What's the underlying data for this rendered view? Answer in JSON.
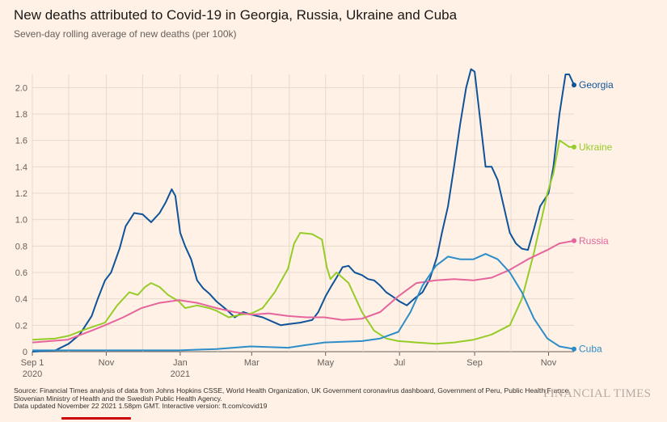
{
  "header": {
    "title": "New deaths attributed to Covid-19 in Georgia, Russia, Ukraine and Cuba",
    "subtitle": "Seven-day rolling average of new deaths (per 100k)"
  },
  "footer": {
    "source": "Source: Financial Times analysis of data from Johns Hopkins CSSE, World Health Organization, UK Government coronavirus dashboard, Government of Peru, Public Health France, Slovenian Ministry of Health and the Swedish Public Health Agency.",
    "updated": "Data updated November 22 2021 1.58pm GMT. Interactive version: ft.com/covid19",
    "brand": "FINANCIAL TIMES"
  },
  "chart_data": {
    "type": "line",
    "title": "New deaths attributed to Covid-19 in Georgia, Russia, Ukraine and Cuba",
    "subtitle": "Seven-day rolling average of new deaths (per 100k)",
    "ylim": [
      0,
      2.1
    ],
    "yticks": [
      "0",
      "0.2",
      "0.4",
      "0.6",
      "0.8",
      "1.0",
      "1.2",
      "1.4",
      "1.6",
      "1.8",
      "2.0"
    ],
    "xlim": [
      "2020-09-01",
      "2021-11-22"
    ],
    "xticks": [
      {
        "date": "2020-09-01",
        "label": "Sep 1",
        "sub": "2020"
      },
      {
        "date": "2020-11-01",
        "label": "Nov",
        "sub": ""
      },
      {
        "date": "2021-01-01",
        "label": "Jan",
        "sub": "2021"
      },
      {
        "date": "2021-03-01",
        "label": "Mar",
        "sub": ""
      },
      {
        "date": "2021-05-01",
        "label": "May",
        "sub": ""
      },
      {
        "date": "2021-07-01",
        "label": "Jul",
        "sub": ""
      },
      {
        "date": "2021-09-01",
        "label": "Sep",
        "sub": ""
      },
      {
        "date": "2021-11-01",
        "label": "Nov",
        "sub": ""
      }
    ],
    "grid": true,
    "series": [
      {
        "name": "Georgia",
        "color": "#0f5499",
        "points": [
          [
            "2020-09-01",
            0.0
          ],
          [
            "2020-09-20",
            0.01
          ],
          [
            "2020-10-01",
            0.06
          ],
          [
            "2020-10-10",
            0.13
          ],
          [
            "2020-10-20",
            0.27
          ],
          [
            "2020-10-25",
            0.4
          ],
          [
            "2020-10-31",
            0.54
          ],
          [
            "2020-11-05",
            0.6
          ],
          [
            "2020-11-12",
            0.78
          ],
          [
            "2020-11-17",
            0.95
          ],
          [
            "2020-11-24",
            1.05
          ],
          [
            "2020-12-01",
            1.04
          ],
          [
            "2020-12-08",
            0.98
          ],
          [
            "2020-12-15",
            1.05
          ],
          [
            "2020-12-20",
            1.13
          ],
          [
            "2020-12-25",
            1.23
          ],
          [
            "2020-12-28",
            1.18
          ],
          [
            "2021-01-01",
            0.9
          ],
          [
            "2021-01-05",
            0.8
          ],
          [
            "2021-01-10",
            0.7
          ],
          [
            "2021-01-15",
            0.54
          ],
          [
            "2021-01-20",
            0.48
          ],
          [
            "2021-01-25",
            0.44
          ],
          [
            "2021-01-31",
            0.38
          ],
          [
            "2021-02-08",
            0.32
          ],
          [
            "2021-02-15",
            0.26
          ],
          [
            "2021-02-22",
            0.3
          ],
          [
            "2021-03-01",
            0.28
          ],
          [
            "2021-03-10",
            0.26
          ],
          [
            "2021-03-20",
            0.22
          ],
          [
            "2021-03-25",
            0.2
          ],
          [
            "2021-04-01",
            0.21
          ],
          [
            "2021-04-10",
            0.22
          ],
          [
            "2021-04-20",
            0.24
          ],
          [
            "2021-04-25",
            0.3
          ],
          [
            "2021-05-01",
            0.42
          ],
          [
            "2021-05-06",
            0.5
          ],
          [
            "2021-05-10",
            0.56
          ],
          [
            "2021-05-15",
            0.64
          ],
          [
            "2021-05-20",
            0.65
          ],
          [
            "2021-05-25",
            0.6
          ],
          [
            "2021-05-31",
            0.58
          ],
          [
            "2021-06-05",
            0.55
          ],
          [
            "2021-06-10",
            0.54
          ],
          [
            "2021-06-15",
            0.5
          ],
          [
            "2021-06-20",
            0.45
          ],
          [
            "2021-06-25",
            0.42
          ],
          [
            "2021-07-01",
            0.38
          ],
          [
            "2021-07-07",
            0.35
          ],
          [
            "2021-07-13",
            0.4
          ],
          [
            "2021-07-20",
            0.45
          ],
          [
            "2021-07-26",
            0.55
          ],
          [
            "2021-08-01",
            0.72
          ],
          [
            "2021-08-05",
            0.9
          ],
          [
            "2021-08-10",
            1.1
          ],
          [
            "2021-08-15",
            1.4
          ],
          [
            "2021-08-20",
            1.72
          ],
          [
            "2021-08-25",
            2.0
          ],
          [
            "2021-08-29",
            2.14
          ],
          [
            "2021-09-01",
            2.12
          ],
          [
            "2021-09-05",
            1.8
          ],
          [
            "2021-09-10",
            1.4
          ],
          [
            "2021-09-15",
            1.4
          ],
          [
            "2021-09-20",
            1.3
          ],
          [
            "2021-09-25",
            1.1
          ],
          [
            "2021-09-30",
            0.9
          ],
          [
            "2021-10-05",
            0.82
          ],
          [
            "2021-10-10",
            0.78
          ],
          [
            "2021-10-15",
            0.77
          ],
          [
            "2021-10-20",
            0.93
          ],
          [
            "2021-10-25",
            1.1
          ],
          [
            "2021-11-01",
            1.2
          ],
          [
            "2021-11-05",
            1.4
          ],
          [
            "2021-11-10",
            1.8
          ],
          [
            "2021-11-15",
            2.1
          ],
          [
            "2021-11-18",
            2.1
          ],
          [
            "2021-11-22",
            2.02
          ]
        ]
      },
      {
        "name": "Ukraine",
        "color": "#96cc28",
        "points": [
          [
            "2020-09-01",
            0.09
          ],
          [
            "2020-09-20",
            0.1
          ],
          [
            "2020-10-01",
            0.12
          ],
          [
            "2020-10-15",
            0.17
          ],
          [
            "2020-10-31",
            0.22
          ],
          [
            "2020-11-10",
            0.35
          ],
          [
            "2020-11-20",
            0.45
          ],
          [
            "2020-11-27",
            0.43
          ],
          [
            "2020-12-03",
            0.49
          ],
          [
            "2020-12-08",
            0.52
          ],
          [
            "2020-12-15",
            0.49
          ],
          [
            "2020-12-22",
            0.43
          ],
          [
            "2020-12-31",
            0.38
          ],
          [
            "2021-01-05",
            0.33
          ],
          [
            "2021-01-15",
            0.35
          ],
          [
            "2021-01-25",
            0.33
          ],
          [
            "2021-01-31",
            0.31
          ],
          [
            "2021-02-10",
            0.26
          ],
          [
            "2021-02-20",
            0.28
          ],
          [
            "2021-03-01",
            0.29
          ],
          [
            "2021-03-10",
            0.33
          ],
          [
            "2021-03-20",
            0.45
          ],
          [
            "2021-03-31",
            0.63
          ],
          [
            "2021-04-05",
            0.82
          ],
          [
            "2021-04-10",
            0.9
          ],
          [
            "2021-04-20",
            0.89
          ],
          [
            "2021-04-28",
            0.85
          ],
          [
            "2021-05-02",
            0.64
          ],
          [
            "2021-05-05",
            0.55
          ],
          [
            "2021-05-10",
            0.6
          ],
          [
            "2021-05-15",
            0.56
          ],
          [
            "2021-05-20",
            0.52
          ],
          [
            "2021-05-25",
            0.42
          ],
          [
            "2021-05-31",
            0.3
          ],
          [
            "2021-06-10",
            0.16
          ],
          [
            "2021-06-20",
            0.1
          ],
          [
            "2021-06-30",
            0.08
          ],
          [
            "2021-07-15",
            0.07
          ],
          [
            "2021-07-31",
            0.06
          ],
          [
            "2021-08-15",
            0.07
          ],
          [
            "2021-08-31",
            0.09
          ],
          [
            "2021-09-15",
            0.13
          ],
          [
            "2021-09-30",
            0.2
          ],
          [
            "2021-10-10",
            0.4
          ],
          [
            "2021-10-20",
            0.75
          ],
          [
            "2021-10-31",
            1.2
          ],
          [
            "2021-11-05",
            1.35
          ],
          [
            "2021-11-10",
            1.6
          ],
          [
            "2021-11-15",
            1.57
          ],
          [
            "2021-11-18",
            1.55
          ],
          [
            "2021-11-22",
            1.55
          ]
        ]
      },
      {
        "name": "Russia",
        "color": "#e5659c",
        "points": [
          [
            "2020-09-01",
            0.07
          ],
          [
            "2020-09-30",
            0.09
          ],
          [
            "2020-10-20",
            0.16
          ],
          [
            "2020-10-31",
            0.2
          ],
          [
            "2020-11-15",
            0.26
          ],
          [
            "2020-11-30",
            0.33
          ],
          [
            "2020-12-15",
            0.37
          ],
          [
            "2020-12-31",
            0.39
          ],
          [
            "2021-01-15",
            0.37
          ],
          [
            "2021-01-31",
            0.33
          ],
          [
            "2021-02-15",
            0.3
          ],
          [
            "2021-03-01",
            0.28
          ],
          [
            "2021-03-15",
            0.29
          ],
          [
            "2021-03-31",
            0.27
          ],
          [
            "2021-04-15",
            0.26
          ],
          [
            "2021-04-30",
            0.26
          ],
          [
            "2021-05-15",
            0.24
          ],
          [
            "2021-05-31",
            0.25
          ],
          [
            "2021-06-15",
            0.3
          ],
          [
            "2021-06-30",
            0.42
          ],
          [
            "2021-07-15",
            0.52
          ],
          [
            "2021-07-31",
            0.54
          ],
          [
            "2021-08-15",
            0.55
          ],
          [
            "2021-08-31",
            0.54
          ],
          [
            "2021-09-15",
            0.56
          ],
          [
            "2021-09-30",
            0.62
          ],
          [
            "2021-10-15",
            0.7
          ],
          [
            "2021-10-31",
            0.77
          ],
          [
            "2021-11-10",
            0.82
          ],
          [
            "2021-11-22",
            0.84
          ]
        ]
      },
      {
        "name": "Cuba",
        "color": "#2d8dc8",
        "points": [
          [
            "2020-09-01",
            0.01
          ],
          [
            "2020-12-31",
            0.01
          ],
          [
            "2021-01-31",
            0.02
          ],
          [
            "2021-02-28",
            0.04
          ],
          [
            "2021-03-31",
            0.03
          ],
          [
            "2021-04-15",
            0.05
          ],
          [
            "2021-04-30",
            0.07
          ],
          [
            "2021-05-31",
            0.08
          ],
          [
            "2021-06-15",
            0.1
          ],
          [
            "2021-06-30",
            0.15
          ],
          [
            "2021-07-10",
            0.3
          ],
          [
            "2021-07-20",
            0.5
          ],
          [
            "2021-07-31",
            0.65
          ],
          [
            "2021-08-10",
            0.72
          ],
          [
            "2021-08-20",
            0.7
          ],
          [
            "2021-08-31",
            0.7
          ],
          [
            "2021-09-10",
            0.74
          ],
          [
            "2021-09-20",
            0.7
          ],
          [
            "2021-09-30",
            0.6
          ],
          [
            "2021-10-10",
            0.45
          ],
          [
            "2021-10-20",
            0.25
          ],
          [
            "2021-10-31",
            0.1
          ],
          [
            "2021-11-10",
            0.04
          ],
          [
            "2021-11-22",
            0.02
          ]
        ]
      }
    ]
  }
}
